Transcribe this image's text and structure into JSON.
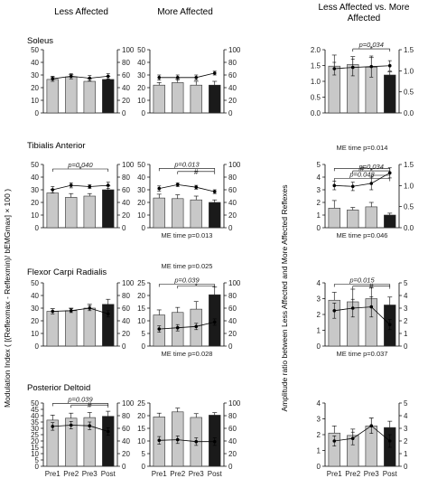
{
  "chart_data": {
    "type": "bar",
    "column_headers": [
      "Less Affected",
      "More Affected",
      "Less Affected vs. More Affected"
    ],
    "row_titles": [
      "Soleus",
      "Tibialis Anterior",
      "Flexor Carpi Radialis",
      "Posterior Deltoid"
    ],
    "categories": [
      "Pre1",
      "Pre2",
      "Pre3",
      "Post"
    ],
    "ylabel_left": "Modulation Index ( [(Reflexmax - Reflexmin)/ bEMGmax] × 100 )",
    "ylabel_right": "Amplitude ratio between Less Affected and More Affected Reflexes",
    "panels": [
      {
        "id": "r0c0",
        "row": 0,
        "col": 0,
        "ylim": [
          0,
          50
        ],
        "ticks": [
          0,
          10,
          20,
          30,
          40,
          50
        ],
        "ylim2": [
          0,
          100
        ],
        "ticks2": [
          0,
          20,
          40,
          60,
          80,
          100
        ],
        "bars": [
          26.5,
          28.5,
          25,
          26.5
        ],
        "err": [
          2,
          2,
          2,
          2.5
        ],
        "line": [
          54,
          58,
          55,
          58
        ],
        "lerr": [
          4,
          4,
          4,
          4
        ],
        "annotations": [],
        "bottom_note": ""
      },
      {
        "id": "r0c1",
        "row": 0,
        "col": 1,
        "ylim": [
          0,
          50
        ],
        "ticks": [
          0,
          10,
          20,
          30,
          40,
          50
        ],
        "ylim2": [
          0,
          100
        ],
        "ticks2": [
          0,
          20,
          40,
          60,
          80,
          100
        ],
        "bars": [
          22,
          24,
          22,
          22
        ],
        "err": [
          2,
          3,
          3,
          3
        ],
        "line": [
          56,
          56,
          56,
          63
        ],
        "lerr": [
          4,
          4,
          4,
          3
        ],
        "annotations": [],
        "bottom_note": ""
      },
      {
        "id": "r0c2",
        "row": 0,
        "col": 2,
        "ylim": [
          0,
          2
        ],
        "ticks": [
          "0.0",
          "0.5",
          "1.0",
          "1.5",
          "2.0"
        ],
        "ylim2": [
          0,
          1.5
        ],
        "ticks2": [
          "0.0",
          "0.5",
          "1.0",
          "1.5"
        ],
        "bars": [
          1.48,
          1.53,
          1.45,
          1.2
        ],
        "err": [
          0.35,
          0.25,
          0.3,
          0.1
        ],
        "line": [
          1.05,
          1.08,
          1.1,
          1.12
        ],
        "lerr": [
          0.15,
          0.2,
          0.25,
          0.12
        ],
        "annotations": [
          {
            "text": "p=0.034",
            "from": 1,
            "to": 3,
            "level": 0.97,
            "marker": "*"
          }
        ],
        "bottom_note": ""
      },
      {
        "id": "r1c0",
        "row": 1,
        "col": 0,
        "ylim": [
          0,
          50
        ],
        "ticks": [
          0,
          10,
          20,
          30,
          40,
          50
        ],
        "ylim2": [
          0,
          100
        ],
        "ticks2": [
          0,
          20,
          40,
          60,
          80,
          100
        ],
        "bars": [
          27.5,
          24,
          25,
          30
        ],
        "err": [
          3,
          3,
          2,
          3
        ],
        "line": [
          60,
          67,
          65,
          67
        ],
        "lerr": [
          5,
          4,
          3,
          5
        ],
        "annotations": [
          {
            "text": "p=0.040",
            "from": 0,
            "to": 3,
            "level": 0.8,
            "marker": "*"
          }
        ],
        "bottom_note": ""
      },
      {
        "id": "r1c1",
        "row": 1,
        "col": 1,
        "ylim": [
          0,
          50
        ],
        "ticks": [
          0,
          10,
          20,
          30,
          40,
          50
        ],
        "ylim2": [
          0,
          100
        ],
        "ticks2": [
          0,
          20,
          40,
          60,
          80,
          100
        ],
        "bars": [
          23.5,
          23,
          22,
          20
        ],
        "err": [
          3,
          3,
          3,
          2
        ],
        "line": [
          62,
          68,
          64,
          57
        ],
        "lerr": [
          4,
          3,
          3,
          3
        ],
        "annotations": [
          {
            "text": "p=0.013",
            "from": 0,
            "to": 3,
            "level": 0.82,
            "marker": ""
          },
          {
            "text": "",
            "from": 1,
            "to": 3,
            "level": 0.72,
            "marker": "#"
          }
        ],
        "bottom_note": "ME time p=0.013"
      },
      {
        "id": "r1c2",
        "row": 1,
        "col": 2,
        "ylim": [
          0,
          5
        ],
        "ticks": [
          0,
          1,
          2,
          3,
          4,
          5
        ],
        "ylim2": [
          0,
          1.5
        ],
        "ticks2": [
          "0.0",
          "0.5",
          "1.0",
          "1.5"
        ],
        "bars": [
          1.55,
          1.4,
          1.65,
          1.0
        ],
        "err": [
          0.6,
          0.2,
          0.35,
          0.15
        ],
        "line": [
          1.0,
          0.98,
          1.05,
          1.3
        ],
        "lerr": [
          0.1,
          0.1,
          0.15,
          0.12
        ],
        "annotations": [
          {
            "text": "",
            "from": 0,
            "to": 3,
            "level": 0.82,
            "marker": "#"
          },
          {
            "text": "p=0.034",
            "from": 1,
            "to": 3,
            "level": 0.74,
            "marker": "*"
          },
          {
            "text": "",
            "from": 2,
            "to": 3,
            "level": 0.6,
            "marker": ""
          },
          {
            "text": "p=0.048",
            "from": 0,
            "to": 3,
            "level": 0.5,
            "marker": ""
          }
        ],
        "bottom_note": "ME time p=0.046",
        "top_note": "ME time p=0.014"
      },
      {
        "id": "r2c0",
        "row": 2,
        "col": 0,
        "ylim": [
          0,
          50
        ],
        "ticks": [
          0,
          10,
          20,
          30,
          40,
          50
        ],
        "ylim2": [
          0,
          100
        ],
        "ticks2": [
          0,
          20,
          40,
          60,
          80,
          100
        ],
        "bars": [
          27.5,
          28,
          30,
          33
        ],
        "err": [
          2,
          2,
          3,
          4
        ],
        "line": [
          55,
          56,
          60,
          51
        ],
        "lerr": [
          4,
          3,
          4,
          5
        ],
        "annotations": [],
        "bottom_note": ""
      },
      {
        "id": "r2c1",
        "row": 2,
        "col": 1,
        "ylim": [
          0,
          25
        ],
        "ticks": [
          0,
          5,
          10,
          15,
          20,
          25
        ],
        "ylim2": [
          0,
          100
        ],
        "ticks2": [
          0,
          20,
          40,
          60,
          80,
          100
        ],
        "bars": [
          12.3,
          13.3,
          14.6,
          20.3
        ],
        "err": [
          2,
          2,
          3,
          3
        ],
        "line": [
          27,
          29,
          31,
          38
        ],
        "lerr": [
          5,
          5,
          5,
          5
        ],
        "annotations": [
          {
            "text": "p=0.039",
            "from": 0,
            "to": 3,
            "level": 0.9,
            "marker": ""
          },
          {
            "text": "",
            "from": 1,
            "to": 3,
            "level": 0.85,
            "marker": "*"
          }
        ],
        "bottom_note": "ME time p=0.028",
        "top_note": "ME time p=0.025"
      },
      {
        "id": "r2c2",
        "row": 2,
        "col": 2,
        "ylim": [
          0,
          4
        ],
        "ticks": [
          0,
          1,
          2,
          3,
          4
        ],
        "ylim2": [
          0,
          5
        ],
        "ticks2": [
          0,
          1,
          2,
          3,
          4,
          5
        ],
        "bars": [
          2.9,
          2.8,
          3.0,
          2.6
        ],
        "err": [
          0.5,
          0.8,
          0.7,
          0.5
        ],
        "line": [
          2.8,
          3.0,
          3.1,
          1.7
        ],
        "lerr": [
          0.6,
          0.7,
          0.8,
          0.4
        ],
        "annotations": [
          {
            "text": "p=0.015",
            "from": 0,
            "to": 3,
            "level": 0.9,
            "marker": ""
          },
          {
            "text": "",
            "from": 1,
            "to": 3,
            "level": 0.84,
            "marker": "#"
          }
        ],
        "bottom_note": "ME time p=0.037"
      },
      {
        "id": "r3c0",
        "row": 3,
        "col": 0,
        "ylim": [
          0,
          50
        ],
        "ticks": [
          0,
          5,
          10,
          15,
          20,
          25,
          30,
          35,
          40,
          45,
          50
        ],
        "ylim2": [
          0,
          100
        ],
        "ticks2": [
          0,
          20,
          40,
          60,
          80,
          100
        ],
        "bars": [
          36.5,
          38,
          38.5,
          39.5
        ],
        "err": [
          4,
          4,
          4,
          4
        ],
        "line": [
          63,
          65,
          64,
          55
        ],
        "lerr": [
          6,
          6,
          6,
          6
        ],
        "annotations": [
          {
            "text": "p=0.039",
            "from": 0,
            "to": 3,
            "level": 0.93,
            "marker": ""
          },
          {
            "text": "",
            "from": 1,
            "to": 3,
            "level": 0.88,
            "marker": "#"
          }
        ],
        "bottom_note": ""
      },
      {
        "id": "r3c1",
        "row": 3,
        "col": 1,
        "ylim": [
          0,
          25
        ],
        "ticks": [
          0,
          5,
          10,
          15,
          20,
          25
        ],
        "ylim2": [
          0,
          100
        ],
        "ticks2": [
          0,
          20,
          40,
          60,
          80,
          100
        ],
        "bars": [
          19.5,
          21.5,
          19.3,
          20.2
        ],
        "err": [
          1.5,
          1.5,
          1.5,
          1
        ],
        "line": [
          41,
          42,
          39,
          39
        ],
        "lerr": [
          6,
          6,
          6,
          6
        ],
        "annotations": [],
        "bottom_note": ""
      },
      {
        "id": "r3c2",
        "row": 3,
        "col": 2,
        "ylim": [
          0,
          4
        ],
        "ticks": [
          0,
          1,
          2,
          3,
          4
        ],
        "ylim2": [
          0,
          5
        ],
        "ticks2": [
          0,
          1,
          2,
          3,
          4,
          5
        ],
        "bars": [
          2.1,
          1.95,
          2.55,
          2.45
        ],
        "err": [
          0.45,
          0.4,
          0.5,
          0.4
        ],
        "line": [
          2.0,
          2.2,
          3.2,
          2.0
        ],
        "lerr": [
          0.4,
          0.5,
          0.6,
          0.5
        ],
        "annotations": [],
        "bottom_note": ""
      }
    ],
    "colors": {
      "bar": "#c8c8c8",
      "bar_post": "#1a1a1a",
      "line": "#000000",
      "axis": "#000000"
    },
    "grid": false,
    "legend": "none"
  }
}
